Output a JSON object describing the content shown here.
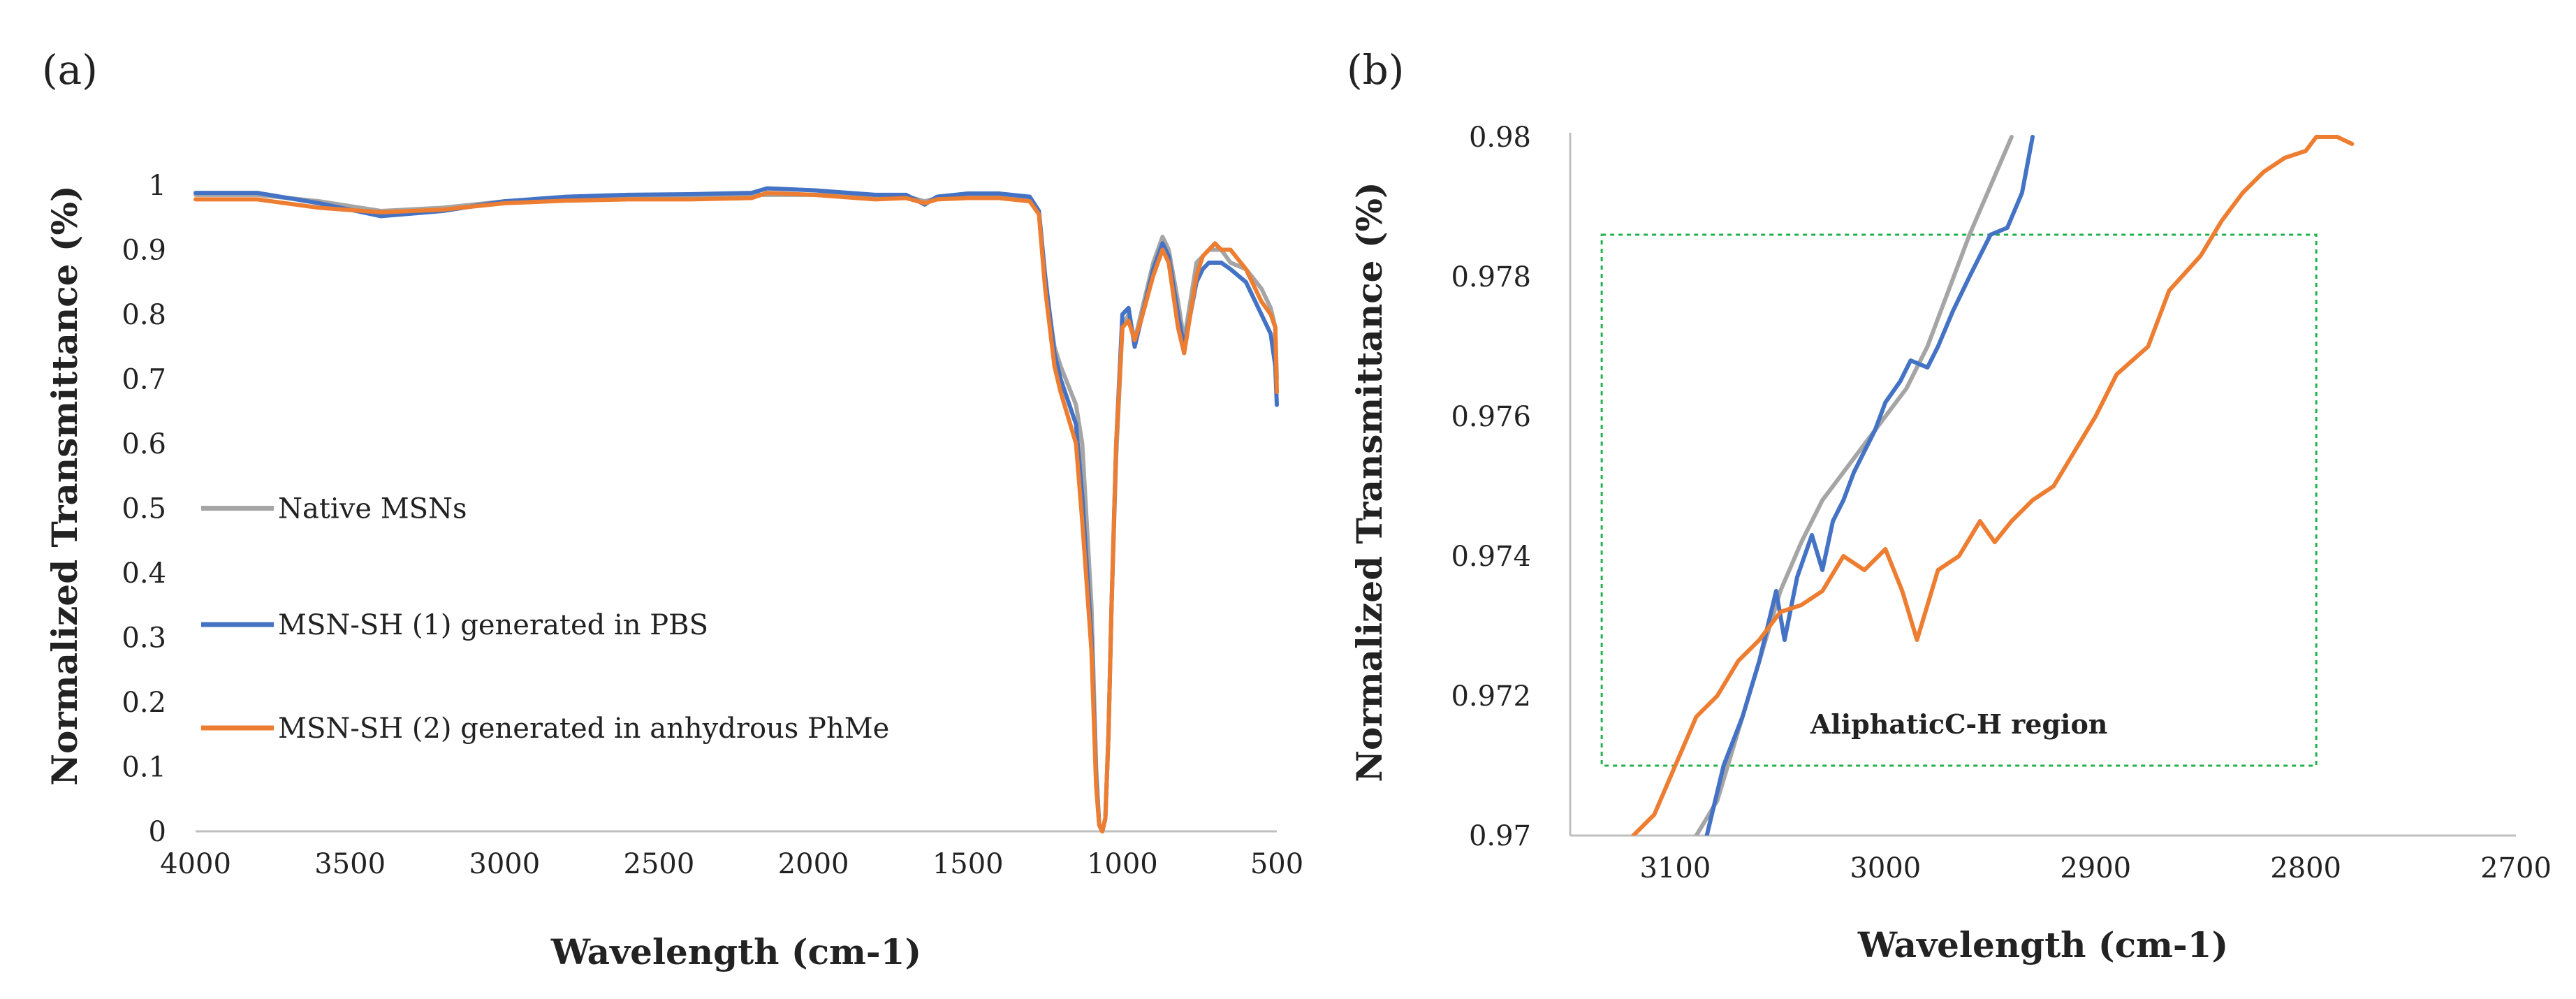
{
  "chart_data": [
    {
      "panel": "(a)",
      "type": "line",
      "title": "",
      "xlabel": "Wavelength (cm-1)",
      "ylabel": "Normalized Transmittance (%)",
      "xlim": [
        4000,
        500
      ],
      "ylim": [
        0,
        1
      ],
      "xticks": [
        "4000",
        "3500",
        "3000",
        "2500",
        "2000",
        "1500",
        "1000",
        "500"
      ],
      "yticks": [
        "0",
        "0.1",
        "0.2",
        "0.3",
        "0.4",
        "0.5",
        "0.6",
        "0.7",
        "0.8",
        "0.9",
        "1"
      ],
      "grid": false,
      "legend_position": "center-left",
      "series": [
        {
          "name": "Native MSNs",
          "color": "#a5a5a5",
          "x": [
            4000,
            3800,
            3600,
            3400,
            3200,
            3000,
            2800,
            2600,
            2400,
            2200,
            2000,
            1800,
            1700,
            1640,
            1600,
            1500,
            1400,
            1300,
            1270,
            1250,
            1220,
            1200,
            1150,
            1130,
            1100,
            1085,
            1075,
            1065,
            1055,
            1045,
            1035,
            1020,
            1000,
            980,
            960,
            940,
            900,
            870,
            850,
            820,
            800,
            780,
            760,
            740,
            720,
            700,
            680,
            650,
            600,
            550,
            520,
            505,
            500
          ],
          "y": [
            0.985,
            0.985,
            0.975,
            0.96,
            0.965,
            0.975,
            0.98,
            0.982,
            0.983,
            0.985,
            0.985,
            0.983,
            0.983,
            0.975,
            0.98,
            0.985,
            0.985,
            0.98,
            0.96,
            0.85,
            0.75,
            0.72,
            0.66,
            0.6,
            0.35,
            0.1,
            0.01,
            0.0,
            0.02,
            0.15,
            0.35,
            0.58,
            0.78,
            0.8,
            0.76,
            0.8,
            0.88,
            0.92,
            0.9,
            0.82,
            0.76,
            0.82,
            0.88,
            0.89,
            0.9,
            0.9,
            0.9,
            0.88,
            0.87,
            0.84,
            0.81,
            0.78,
            0.7
          ]
        },
        {
          "name": "MSN-SH (1) generated in PBS",
          "color": "#4472c4",
          "x": [
            4000,
            3800,
            3600,
            3400,
            3200,
            3000,
            2800,
            2600,
            2400,
            2200,
            2150,
            2000,
            1800,
            1700,
            1640,
            1600,
            1500,
            1400,
            1300,
            1270,
            1250,
            1220,
            1200,
            1150,
            1130,
            1100,
            1085,
            1075,
            1065,
            1055,
            1045,
            1035,
            1020,
            1000,
            980,
            960,
            940,
            900,
            870,
            850,
            820,
            800,
            780,
            760,
            740,
            720,
            700,
            680,
            650,
            600,
            550,
            520,
            505,
            500
          ],
          "y": [
            0.988,
            0.988,
            0.972,
            0.952,
            0.96,
            0.975,
            0.982,
            0.985,
            0.986,
            0.988,
            0.995,
            0.992,
            0.985,
            0.985,
            0.97,
            0.982,
            0.987,
            0.987,
            0.982,
            0.96,
            0.86,
            0.74,
            0.7,
            0.63,
            0.52,
            0.3,
            0.08,
            0.01,
            0.0,
            0.02,
            0.15,
            0.35,
            0.6,
            0.8,
            0.81,
            0.75,
            0.79,
            0.87,
            0.91,
            0.89,
            0.8,
            0.75,
            0.8,
            0.85,
            0.87,
            0.88,
            0.88,
            0.88,
            0.87,
            0.85,
            0.8,
            0.77,
            0.72,
            0.66
          ]
        },
        {
          "name": "MSN-SH (2) generated in anhydrous PhMe",
          "color": "#ed7d31",
          "x": [
            4000,
            3800,
            3600,
            3400,
            3200,
            3000,
            2800,
            2600,
            2400,
            2200,
            2150,
            2000,
            1800,
            1700,
            1640,
            1600,
            1500,
            1400,
            1300,
            1270,
            1250,
            1220,
            1200,
            1150,
            1130,
            1100,
            1085,
            1075,
            1065,
            1055,
            1045,
            1035,
            1020,
            1000,
            980,
            960,
            940,
            900,
            870,
            850,
            820,
            800,
            780,
            760,
            740,
            720,
            700,
            680,
            650,
            600,
            550,
            520,
            505,
            500
          ],
          "y": [
            0.978,
            0.978,
            0.965,
            0.958,
            0.962,
            0.972,
            0.976,
            0.978,
            0.978,
            0.98,
            0.988,
            0.985,
            0.978,
            0.98,
            0.972,
            0.978,
            0.98,
            0.98,
            0.975,
            0.955,
            0.84,
            0.72,
            0.68,
            0.6,
            0.48,
            0.28,
            0.07,
            0.01,
            0.0,
            0.02,
            0.15,
            0.35,
            0.6,
            0.78,
            0.79,
            0.76,
            0.79,
            0.86,
            0.9,
            0.88,
            0.78,
            0.74,
            0.8,
            0.86,
            0.89,
            0.9,
            0.91,
            0.9,
            0.9,
            0.87,
            0.82,
            0.8,
            0.78,
            0.68
          ]
        }
      ]
    },
    {
      "panel": "(b)",
      "type": "line",
      "title": "",
      "xlabel": "Wavelength (cm-1)",
      "ylabel": "Normalized Transmittance (%)",
      "xlim": [
        3150,
        2700
      ],
      "ylim": [
        0.97,
        0.98
      ],
      "xticks": [
        "3100",
        "3000",
        "2900",
        "2800",
        "2700"
      ],
      "yticks": [
        "0.97",
        "0.972",
        "0.974",
        "0.976",
        "0.978",
        "0.98"
      ],
      "grid": false,
      "annotation": "AliphaticC-H region",
      "highlight_box": {
        "x_from": 3135,
        "x_to": 2795,
        "y_from": 0.971,
        "y_to": 0.9786
      },
      "series": [
        {
          "name": "Native MSNs",
          "color": "#a5a5a5",
          "x": [
            3090,
            3080,
            3070,
            3060,
            3050,
            3040,
            3030,
            3020,
            3010,
            3000,
            2990,
            2980,
            2970,
            2960,
            2950,
            2940
          ],
          "y": [
            0.97,
            0.9705,
            0.9715,
            0.9725,
            0.9735,
            0.9742,
            0.9748,
            0.9752,
            0.9756,
            0.976,
            0.9764,
            0.977,
            0.9778,
            0.9786,
            0.9793,
            0.98
          ]
        },
        {
          "name": "MSN-SH (1) generated in PBS",
          "color": "#4472c4",
          "x": [
            3085,
            3077,
            3068,
            3060,
            3052,
            3048,
            3042,
            3035,
            3030,
            3025,
            3020,
            3015,
            3010,
            3005,
            3000,
            2993,
            2988,
            2980,
            2975,
            2968,
            2960,
            2950,
            2942,
            2935,
            2930
          ],
          "y": [
            0.97,
            0.971,
            0.9717,
            0.9725,
            0.9735,
            0.9728,
            0.9737,
            0.9743,
            0.9738,
            0.9745,
            0.9748,
            0.9752,
            0.9755,
            0.9758,
            0.9762,
            0.9765,
            0.9768,
            0.9767,
            0.977,
            0.9775,
            0.978,
            0.9786,
            0.9787,
            0.9792,
            0.98
          ]
        },
        {
          "name": "MSN-SH (2) generated in anhydrous PhMe",
          "color": "#ed7d31",
          "x": [
            3120,
            3110,
            3100,
            3090,
            3080,
            3070,
            3060,
            3050,
            3040,
            3030,
            3020,
            3010,
            3000,
            2992,
            2985,
            2975,
            2965,
            2955,
            2948,
            2940,
            2930,
            2920,
            2910,
            2900,
            2890,
            2875,
            2865,
            2850,
            2840,
            2830,
            2820,
            2810,
            2800,
            2795,
            2785,
            2778
          ],
          "y": [
            0.97,
            0.9703,
            0.971,
            0.9717,
            0.972,
            0.9725,
            0.9728,
            0.9732,
            0.9733,
            0.9735,
            0.974,
            0.9738,
            0.9741,
            0.9735,
            0.9728,
            0.9738,
            0.974,
            0.9745,
            0.9742,
            0.9745,
            0.9748,
            0.975,
            0.9755,
            0.976,
            0.9766,
            0.977,
            0.9778,
            0.9783,
            0.9788,
            0.9792,
            0.9795,
            0.9797,
            0.9798,
            0.98,
            0.98,
            0.9799
          ]
        }
      ]
    }
  ]
}
